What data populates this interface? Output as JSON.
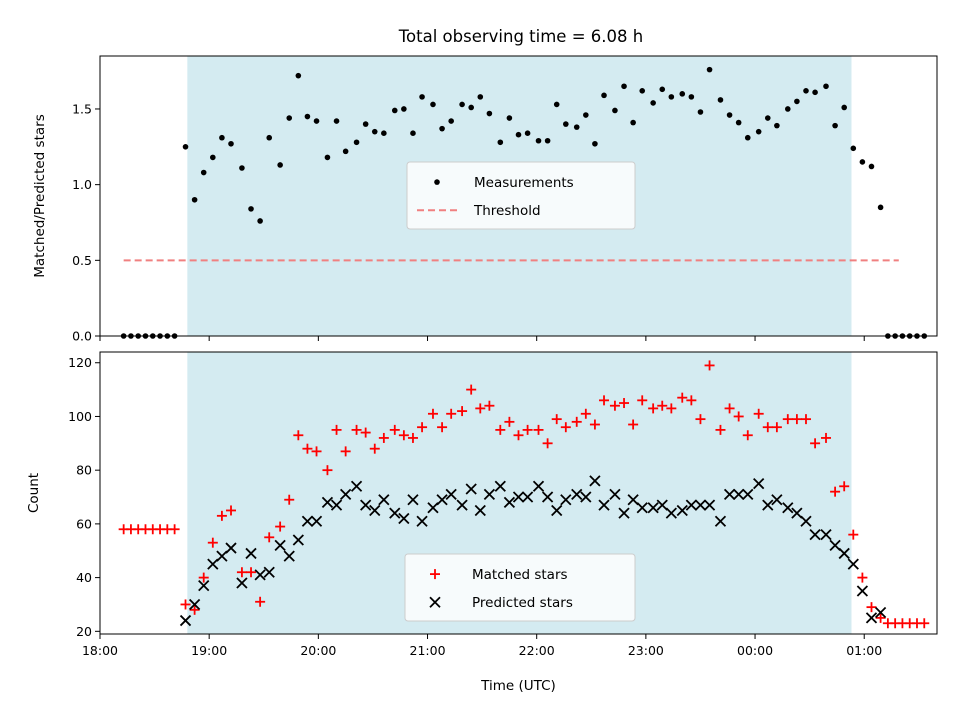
{
  "figure": {
    "title": "Total observing time = 6.08 h"
  },
  "chart_data": [
    {
      "type": "scatter",
      "title": "Total observing time = 6.08 h",
      "xlabel": "",
      "ylabel": "Matched/Predicted stars",
      "xlim": [
        "18:00",
        "01:40"
      ],
      "ylim": [
        0,
        1.85
      ],
      "yticks": [
        0.0,
        0.5,
        1.0,
        1.5
      ],
      "ytick_labels": [
        "0.0",
        "0.5",
        "1.0",
        "1.5"
      ],
      "xtick_labels_shown": false,
      "grid": false,
      "legend": {
        "placement": "center",
        "entries": [
          "Measurements",
          "Threshold"
        ]
      },
      "shaded_region": {
        "start": "18:48",
        "end": "00:53",
        "color": "#d4ebf1"
      },
      "colors": {
        "measurements": "#000000",
        "threshold": "#f08080"
      },
      "threshold": {
        "name": "Threshold",
        "y": 0.5,
        "x_start": "18:13",
        "x_end": "01:19"
      },
      "series": [
        {
          "name": "Measurements",
          "marker": "dot",
          "points": [
            [
              "18:13",
              0
            ],
            [
              "18:17",
              0
            ],
            [
              "18:21",
              0
            ],
            [
              "18:25",
              0
            ],
            [
              "18:29",
              0
            ],
            [
              "18:33",
              0
            ],
            [
              "18:37",
              0
            ],
            [
              "18:41",
              0
            ],
            [
              "18:47",
              1.25
            ],
            [
              "18:52",
              0.9
            ],
            [
              "18:57",
              1.08
            ],
            [
              "19:02",
              1.18
            ],
            [
              "19:07",
              1.31
            ],
            [
              "19:12",
              1.27
            ],
            [
              "19:18",
              1.11
            ],
            [
              "19:23",
              0.84
            ],
            [
              "19:28",
              0.76
            ],
            [
              "19:33",
              1.31
            ],
            [
              "19:39",
              1.13
            ],
            [
              "19:44",
              1.44
            ],
            [
              "19:49",
              1.72
            ],
            [
              "19:54",
              1.45
            ],
            [
              "19:59",
              1.42
            ],
            [
              "20:05",
              1.18
            ],
            [
              "20:10",
              1.42
            ],
            [
              "20:15",
              1.22
            ],
            [
              "20:21",
              1.28
            ],
            [
              "20:26",
              1.4
            ],
            [
              "20:31",
              1.35
            ],
            [
              "20:36",
              1.34
            ],
            [
              "20:42",
              1.49
            ],
            [
              "20:47",
              1.5
            ],
            [
              "20:52",
              1.34
            ],
            [
              "20:57",
              1.58
            ],
            [
              "21:03",
              1.53
            ],
            [
              "21:08",
              1.37
            ],
            [
              "21:13",
              1.42
            ],
            [
              "21:19",
              1.53
            ],
            [
              "21:24",
              1.51
            ],
            [
              "21:29",
              1.58
            ],
            [
              "21:34",
              1.47
            ],
            [
              "21:40",
              1.28
            ],
            [
              "21:45",
              1.44
            ],
            [
              "21:50",
              1.33
            ],
            [
              "21:55",
              1.34
            ],
            [
              "22:01",
              1.29
            ],
            [
              "22:06",
              1.29
            ],
            [
              "22:11",
              1.53
            ],
            [
              "22:16",
              1.4
            ],
            [
              "22:22",
              1.38
            ],
            [
              "22:27",
              1.46
            ],
            [
              "22:32",
              1.27
            ],
            [
              "22:37",
              1.59
            ],
            [
              "22:43",
              1.49
            ],
            [
              "22:48",
              1.65
            ],
            [
              "22:53",
              1.41
            ],
            [
              "22:58",
              1.62
            ],
            [
              "23:04",
              1.54
            ],
            [
              "23:09",
              1.63
            ],
            [
              "23:14",
              1.58
            ],
            [
              "23:20",
              1.6
            ],
            [
              "23:25",
              1.58
            ],
            [
              "23:30",
              1.48
            ],
            [
              "23:35",
              1.76
            ],
            [
              "23:41",
              1.56
            ],
            [
              "23:46",
              1.46
            ],
            [
              "23:51",
              1.41
            ],
            [
              "23:56",
              1.31
            ],
            [
              "00:02",
              1.35
            ],
            [
              "00:07",
              1.44
            ],
            [
              "00:12",
              1.39
            ],
            [
              "00:18",
              1.5
            ],
            [
              "00:23",
              1.55
            ],
            [
              "00:28",
              1.62
            ],
            [
              "00:33",
              1.61
            ],
            [
              "00:39",
              1.65
            ],
            [
              "00:44",
              1.39
            ],
            [
              "00:49",
              1.51
            ],
            [
              "00:54",
              1.24
            ],
            [
              "00:59",
              1.15
            ],
            [
              "01:04",
              1.12
            ],
            [
              "01:09",
              0.85
            ],
            [
              "01:13",
              0
            ],
            [
              "01:17",
              0
            ],
            [
              "01:21",
              0
            ],
            [
              "01:25",
              0
            ],
            [
              "01:29",
              0
            ],
            [
              "01:33",
              0
            ]
          ]
        }
      ]
    },
    {
      "type": "scatter",
      "title": "",
      "xlabel": "Time (UTC)",
      "ylabel": "Count",
      "xlim": [
        "18:00",
        "01:40"
      ],
      "ylim": [
        19,
        124
      ],
      "yticks": [
        20,
        40,
        60,
        80,
        100,
        120
      ],
      "ytick_labels": [
        "20",
        "40",
        "60",
        "80",
        "100",
        "120"
      ],
      "xticks": [
        "18:00",
        "19:00",
        "20:00",
        "21:00",
        "22:00",
        "23:00",
        "00:00",
        "01:00"
      ],
      "grid": false,
      "legend": {
        "placement": "lower center",
        "entries": [
          "Matched stars",
          "Predicted stars"
        ]
      },
      "shaded_region": {
        "start": "18:48",
        "end": "00:53",
        "color": "#d4ebf1"
      },
      "colors": {
        "matched": "#ff0000",
        "predicted": "#000000"
      },
      "series": [
        {
          "name": "Matched stars",
          "marker": "plus",
          "points": [
            [
              "18:13",
              58
            ],
            [
              "18:17",
              58
            ],
            [
              "18:21",
              58
            ],
            [
              "18:25",
              58
            ],
            [
              "18:29",
              58
            ],
            [
              "18:33",
              58
            ],
            [
              "18:37",
              58
            ],
            [
              "18:41",
              58
            ],
            [
              "18:47",
              30
            ],
            [
              "18:52",
              28
            ],
            [
              "18:57",
              40
            ],
            [
              "19:02",
              53
            ],
            [
              "19:07",
              63
            ],
            [
              "19:12",
              65
            ],
            [
              "19:18",
              42
            ],
            [
              "19:23",
              42
            ],
            [
              "19:28",
              31
            ],
            [
              "19:33",
              55
            ],
            [
              "19:39",
              59
            ],
            [
              "19:44",
              69
            ],
            [
              "19:49",
              93
            ],
            [
              "19:54",
              88
            ],
            [
              "19:59",
              87
            ],
            [
              "20:05",
              80
            ],
            [
              "20:10",
              95
            ],
            [
              "20:15",
              87
            ],
            [
              "20:21",
              95
            ],
            [
              "20:26",
              94
            ],
            [
              "20:31",
              88
            ],
            [
              "20:36",
              92
            ],
            [
              "20:42",
              95
            ],
            [
              "20:47",
              93
            ],
            [
              "20:52",
              92
            ],
            [
              "20:57",
              96
            ],
            [
              "21:03",
              101
            ],
            [
              "21:08",
              96
            ],
            [
              "21:13",
              101
            ],
            [
              "21:19",
              102
            ],
            [
              "21:24",
              110
            ],
            [
              "21:29",
              103
            ],
            [
              "21:34",
              104
            ],
            [
              "21:40",
              95
            ],
            [
              "21:45",
              98
            ],
            [
              "21:50",
              93
            ],
            [
              "21:55",
              95
            ],
            [
              "22:01",
              95
            ],
            [
              "22:06",
              90
            ],
            [
              "22:11",
              99
            ],
            [
              "22:16",
              96
            ],
            [
              "22:22",
              98
            ],
            [
              "22:27",
              101
            ],
            [
              "22:32",
              97
            ],
            [
              "22:37",
              106
            ],
            [
              "22:43",
              104
            ],
            [
              "22:48",
              105
            ],
            [
              "22:53",
              97
            ],
            [
              "22:58",
              106
            ],
            [
              "23:04",
              103
            ],
            [
              "23:09",
              104
            ],
            [
              "23:14",
              103
            ],
            [
              "23:20",
              107
            ],
            [
              "23:25",
              106
            ],
            [
              "23:30",
              99
            ],
            [
              "23:35",
              119
            ],
            [
              "23:41",
              95
            ],
            [
              "23:46",
              103
            ],
            [
              "23:51",
              100
            ],
            [
              "23:56",
              93
            ],
            [
              "00:02",
              101
            ],
            [
              "00:07",
              96
            ],
            [
              "00:12",
              96
            ],
            [
              "00:18",
              99
            ],
            [
              "00:23",
              99
            ],
            [
              "00:28",
              99
            ],
            [
              "00:33",
              90
            ],
            [
              "00:39",
              92
            ],
            [
              "00:44",
              72
            ],
            [
              "00:49",
              74
            ],
            [
              "00:54",
              56
            ],
            [
              "00:59",
              40
            ],
            [
              "01:04",
              29
            ],
            [
              "01:09",
              25
            ],
            [
              "01:13",
              23
            ],
            [
              "01:17",
              23
            ],
            [
              "01:21",
              23
            ],
            [
              "01:25",
              23
            ],
            [
              "01:29",
              23
            ],
            [
              "01:33",
              23
            ]
          ]
        },
        {
          "name": "Predicted stars",
          "marker": "x",
          "points": [
            [
              "18:47",
              24
            ],
            [
              "18:52",
              30
            ],
            [
              "18:57",
              37
            ],
            [
              "19:02",
              45
            ],
            [
              "19:07",
              48
            ],
            [
              "19:12",
              51
            ],
            [
              "19:18",
              38
            ],
            [
              "19:23",
              49
            ],
            [
              "19:28",
              41
            ],
            [
              "19:33",
              42
            ],
            [
              "19:39",
              52
            ],
            [
              "19:44",
              48
            ],
            [
              "19:49",
              54
            ],
            [
              "19:54",
              61
            ],
            [
              "19:59",
              61
            ],
            [
              "20:05",
              68
            ],
            [
              "20:10",
              67
            ],
            [
              "20:15",
              71
            ],
            [
              "20:21",
              74
            ],
            [
              "20:26",
              67
            ],
            [
              "20:31",
              65
            ],
            [
              "20:36",
              69
            ],
            [
              "20:42",
              64
            ],
            [
              "20:47",
              62
            ],
            [
              "20:52",
              69
            ],
            [
              "20:57",
              61
            ],
            [
              "21:03",
              66
            ],
            [
              "21:08",
              69
            ],
            [
              "21:13",
              71
            ],
            [
              "21:19",
              67
            ],
            [
              "21:24",
              73
            ],
            [
              "21:29",
              65
            ],
            [
              "21:34",
              71
            ],
            [
              "21:40",
              74
            ],
            [
              "21:45",
              68
            ],
            [
              "21:50",
              70
            ],
            [
              "21:55",
              70
            ],
            [
              "22:01",
              74
            ],
            [
              "22:06",
              70
            ],
            [
              "22:11",
              65
            ],
            [
              "22:16",
              69
            ],
            [
              "22:22",
              71
            ],
            [
              "22:27",
              70
            ],
            [
              "22:32",
              76
            ],
            [
              "22:37",
              67
            ],
            [
              "22:43",
              71
            ],
            [
              "22:48",
              64
            ],
            [
              "22:53",
              69
            ],
            [
              "22:58",
              66
            ],
            [
              "23:04",
              66
            ],
            [
              "23:09",
              67
            ],
            [
              "23:14",
              64
            ],
            [
              "23:20",
              65
            ],
            [
              "23:25",
              67
            ],
            [
              "23:30",
              67
            ],
            [
              "23:35",
              67
            ],
            [
              "23:41",
              61
            ],
            [
              "23:46",
              71
            ],
            [
              "23:51",
              71
            ],
            [
              "23:56",
              71
            ],
            [
              "00:02",
              75
            ],
            [
              "00:07",
              67
            ],
            [
              "00:12",
              69
            ],
            [
              "00:18",
              66
            ],
            [
              "00:23",
              64
            ],
            [
              "00:28",
              61
            ],
            [
              "00:33",
              56
            ],
            [
              "00:39",
              56
            ],
            [
              "00:44",
              52
            ],
            [
              "00:49",
              49
            ],
            [
              "00:54",
              45
            ],
            [
              "00:59",
              35
            ],
            [
              "01:04",
              25
            ],
            [
              "01:09",
              27
            ]
          ]
        }
      ]
    }
  ]
}
